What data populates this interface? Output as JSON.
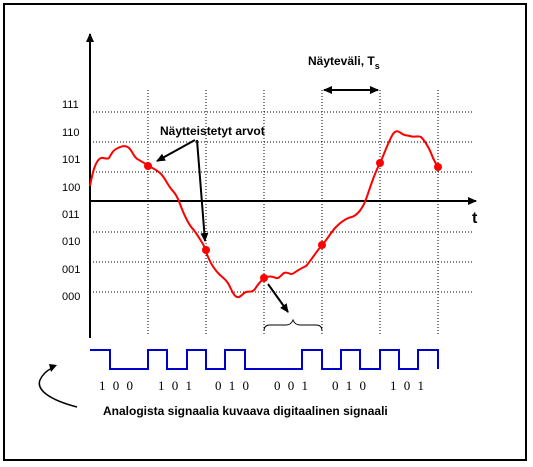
{
  "diagram": {
    "y_levels": [
      "111",
      "110",
      "101",
      "100",
      "011",
      "010",
      "001",
      "000"
    ],
    "t_label": "t",
    "sampling_interval": {
      "label": "Näyteväli, T",
      "subscript": "s"
    },
    "sampled_values_label": "Näytteistetyt arvot",
    "bit_groups": [
      "100",
      "101",
      "010",
      "001",
      "010",
      "101"
    ],
    "caption": "Analogista signaalia kuvaava digitaalinen signaali",
    "colors": {
      "signal": "#ff0000",
      "digital": "#0000cc",
      "axis": "#000000",
      "grid": "#000000"
    }
  }
}
